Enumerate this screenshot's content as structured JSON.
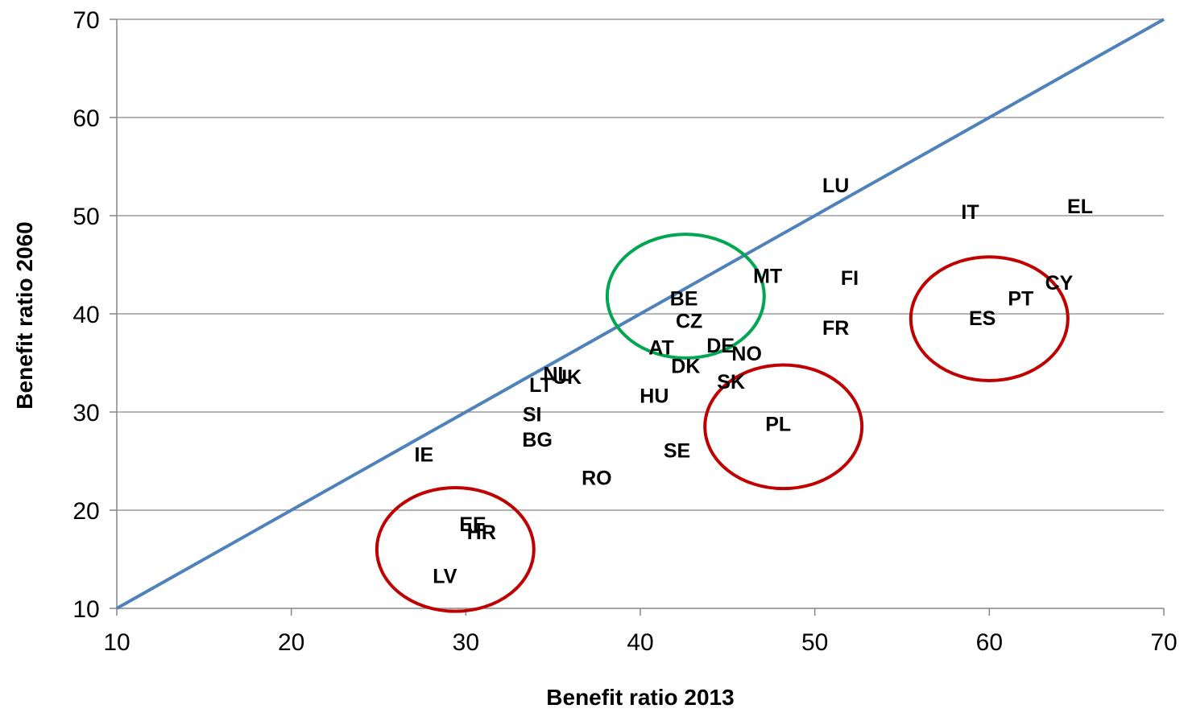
{
  "chart_data": {
    "type": "scatter",
    "xlabel": "Benefit ratio 2013",
    "ylabel": "Benefit ratio 2060",
    "xlim": [
      10,
      70
    ],
    "ylim": [
      10,
      70
    ],
    "xticks": [
      10,
      20,
      30,
      40,
      50,
      60,
      70
    ],
    "yticks": [
      10,
      20,
      30,
      40,
      50,
      60,
      70
    ],
    "grid": "horizontal",
    "reference_line": {
      "from": [
        10,
        10
      ],
      "to": [
        70,
        70
      ],
      "color": "#4f81bd"
    },
    "points": [
      {
        "label": "LU",
        "x": 51.2,
        "y": 53.1
      },
      {
        "label": "IT",
        "x": 58.9,
        "y": 50.4
      },
      {
        "label": "EL",
        "x": 65.2,
        "y": 51.0
      },
      {
        "label": "MT",
        "x": 47.3,
        "y": 43.9
      },
      {
        "label": "FI",
        "x": 52.0,
        "y": 43.7
      },
      {
        "label": "CY",
        "x": 64.0,
        "y": 43.2
      },
      {
        "label": "BE",
        "x": 42.5,
        "y": 41.6
      },
      {
        "label": "PT",
        "x": 61.8,
        "y": 41.6
      },
      {
        "label": "ES",
        "x": 59.6,
        "y": 39.6
      },
      {
        "label": "CZ",
        "x": 42.8,
        "y": 39.3
      },
      {
        "label": "FR",
        "x": 51.2,
        "y": 38.6
      },
      {
        "label": "AT",
        "x": 41.2,
        "y": 36.6
      },
      {
        "label": "DE",
        "x": 44.6,
        "y": 36.8
      },
      {
        "label": "NO",
        "x": 46.1,
        "y": 36.0
      },
      {
        "label": "DK",
        "x": 42.6,
        "y": 34.7
      },
      {
        "label": "NL",
        "x": 35.2,
        "y": 33.9
      },
      {
        "label": "UK",
        "x": 35.8,
        "y": 33.6
      },
      {
        "label": "LT",
        "x": 34.3,
        "y": 32.8
      },
      {
        "label": "SK",
        "x": 45.2,
        "y": 33.1
      },
      {
        "label": "HU",
        "x": 40.8,
        "y": 31.7
      },
      {
        "label": "PL",
        "x": 47.9,
        "y": 28.8
      },
      {
        "label": "SI",
        "x": 33.8,
        "y": 29.8
      },
      {
        "label": "BG",
        "x": 34.1,
        "y": 27.2
      },
      {
        "label": "IE",
        "x": 27.6,
        "y": 25.7
      },
      {
        "label": "SE",
        "x": 42.1,
        "y": 26.1
      },
      {
        "label": "RO",
        "x": 37.5,
        "y": 23.3
      },
      {
        "label": "EE",
        "x": 30.4,
        "y": 18.6
      },
      {
        "label": "HR",
        "x": 30.9,
        "y": 17.8
      },
      {
        "label": "LV",
        "x": 28.8,
        "y": 13.3
      }
    ],
    "highlight_circles": [
      {
        "cx": 42.6,
        "cy": 41.8,
        "rx": 4.5,
        "ry": 6.3,
        "color": "#00a650"
      },
      {
        "cx": 29.4,
        "cy": 16.0,
        "rx": 4.5,
        "ry": 6.3,
        "color": "#c00000"
      },
      {
        "cx": 48.2,
        "cy": 28.5,
        "rx": 4.5,
        "ry": 6.3,
        "color": "#c00000"
      },
      {
        "cx": 60.0,
        "cy": 39.5,
        "rx": 4.5,
        "ry": 6.3,
        "color": "#c00000"
      }
    ]
  }
}
